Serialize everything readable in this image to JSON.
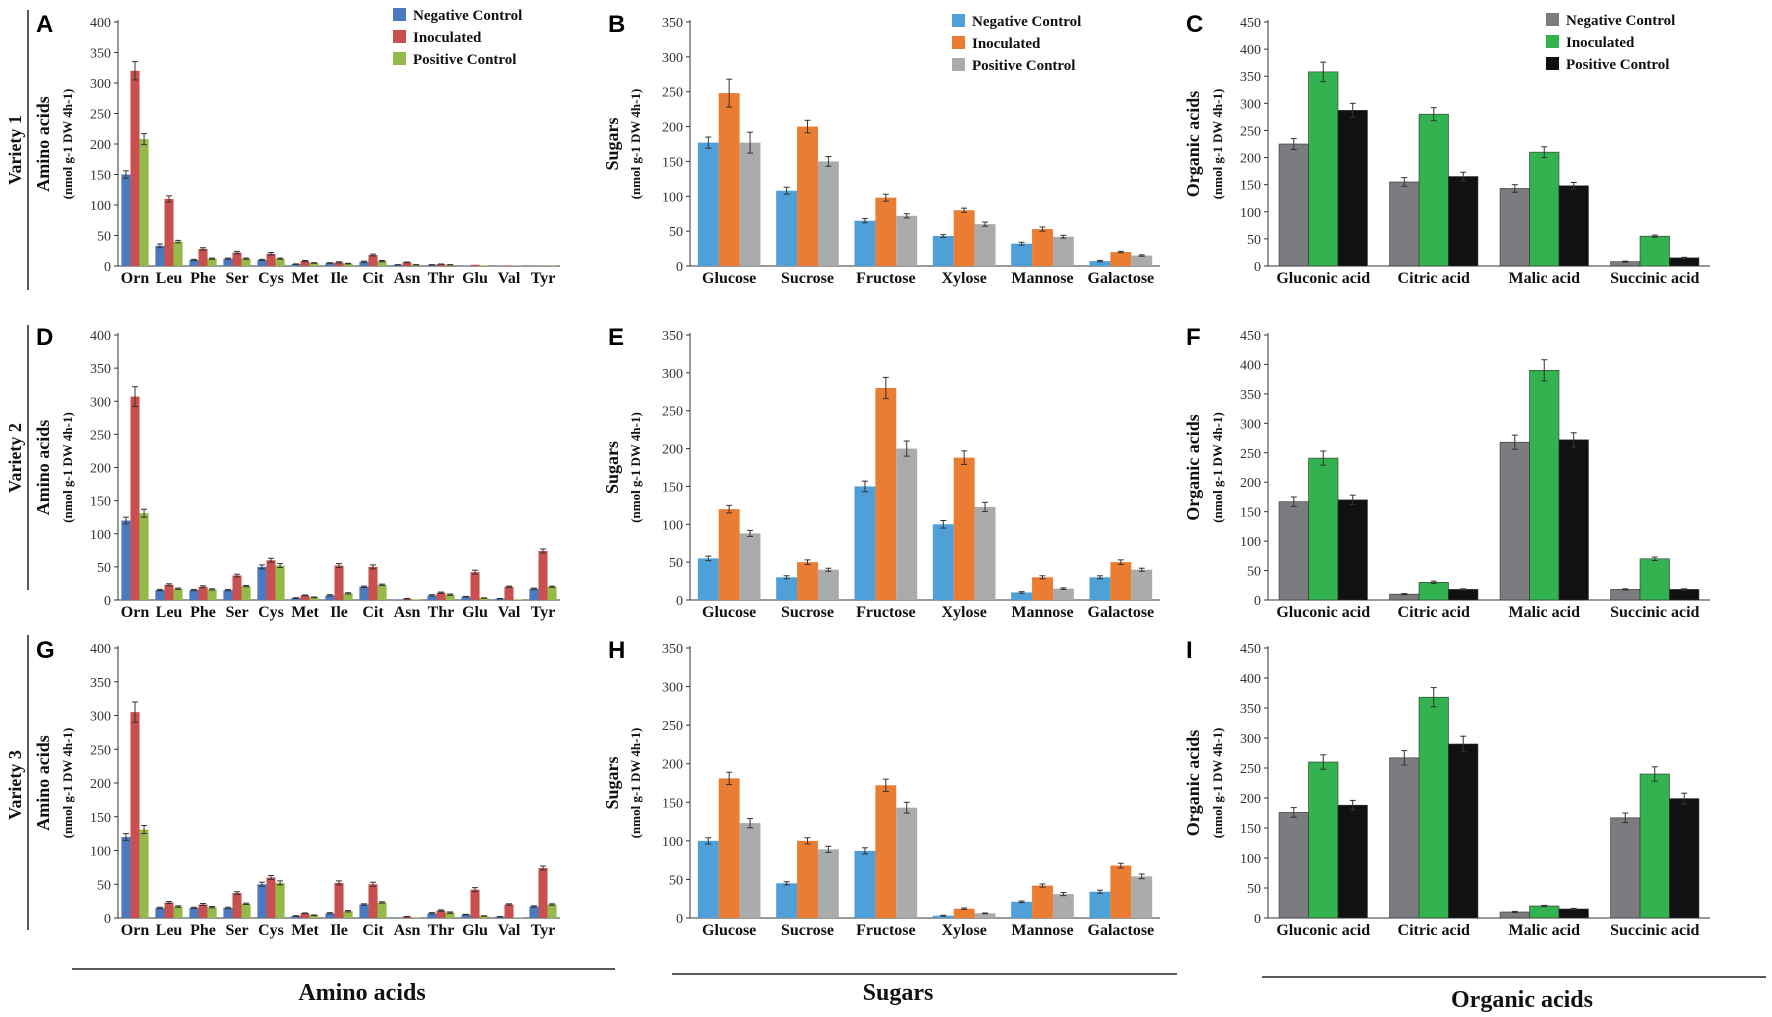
{
  "figure": {
    "row_labels": [
      "Variety 1",
      "Variety 2",
      "Variety 3"
    ],
    "group_labels": [
      "Amino acids",
      "Sugars",
      "Organic acids"
    ],
    "colors": {
      "amino": [
        "#4a79bf",
        "#c9504f",
        "#94bb49"
      ],
      "sugar": [
        "#4f9fd9",
        "#ea7d31",
        "#a9abad"
      ],
      "organic": [
        "#7a7c7f",
        "#32b350",
        "#111111"
      ]
    },
    "y_units": "(nmol g-1 DW 4h-1)"
  },
  "chart_data": [
    {
      "label": "A",
      "type": "bar",
      "ylabel": "Amino acids",
      "ylim": [
        0,
        400
      ],
      "ytick_step": 50,
      "legend": true,
      "legend_position": "top-right",
      "categories": [
        "Orn",
        "Leu",
        "Phe",
        "Ser",
        "Cys",
        "Met",
        "Ile",
        "Cit",
        "Asn",
        "Thr",
        "Glu",
        "Val",
        "Tyr"
      ],
      "series": [
        {
          "name": "Negative Control",
          "values": [
            150,
            33,
            10,
            12,
            10,
            3,
            5,
            7,
            2,
            2,
            1,
            0.5,
            0.5
          ],
          "errors": [
            6,
            3,
            1,
            1,
            1,
            0.5,
            0.5,
            1,
            0.3,
            0.3,
            0.2,
            0.1,
            0.1
          ]
        },
        {
          "name": "Inoculated",
          "values": [
            320,
            110,
            28,
            22,
            20,
            8,
            6,
            18,
            6,
            3,
            2,
            1,
            0.5
          ],
          "errors": [
            15,
            5,
            2,
            2,
            2,
            1,
            1,
            1.5,
            0.5,
            0.3,
            0.2,
            0.1,
            0.1
          ]
        },
        {
          "name": "Positive Control",
          "values": [
            208,
            40,
            12,
            12,
            12,
            5,
            4,
            8,
            2,
            2,
            1,
            0.5,
            0.5
          ],
          "errors": [
            9,
            2,
            1,
            1,
            1,
            0.5,
            0.5,
            1,
            0.3,
            0.3,
            0.2,
            0.1,
            0.1
          ]
        }
      ]
    },
    {
      "label": "B",
      "type": "bar",
      "ylabel": "Sugars",
      "ylim": [
        0,
        350
      ],
      "ytick_step": 50,
      "legend": true,
      "legend_position": "top-right",
      "categories": [
        "Glucose",
        "Sucrose",
        "Fructose",
        "Xylose",
        "Mannose",
        "Galactose"
      ],
      "series": [
        {
          "name": "Negative Control",
          "values": [
            177,
            108,
            65,
            43,
            32,
            7
          ],
          "errors": [
            8,
            5,
            3,
            2,
            2,
            1
          ]
        },
        {
          "name": "Inoculated",
          "values": [
            248,
            200,
            98,
            80,
            53,
            20
          ],
          "errors": [
            20,
            9,
            5,
            3,
            3,
            1
          ]
        },
        {
          "name": "Positive Control",
          "values": [
            177,
            150,
            72,
            60,
            42,
            15
          ],
          "errors": [
            15,
            7,
            3,
            3,
            2,
            1
          ]
        }
      ]
    },
    {
      "label": "C",
      "type": "bar",
      "ylabel": "Organic acids",
      "ylim": [
        0,
        450
      ],
      "ytick_step": 50,
      "legend": true,
      "legend_position": "top-right",
      "categories": [
        "Gluconic acid",
        "Citric acid",
        "Malic acid",
        "Succinic acid"
      ],
      "series": [
        {
          "name": "Negative Control",
          "values": [
            225,
            155,
            143,
            8
          ],
          "errors": [
            10,
            8,
            7,
            1
          ]
        },
        {
          "name": "Inoculated",
          "values": [
            358,
            280,
            210,
            55
          ],
          "errors": [
            18,
            12,
            10,
            2
          ]
        },
        {
          "name": "Positive Control",
          "values": [
            287,
            165,
            148,
            15
          ],
          "errors": [
            13,
            8,
            6,
            1
          ]
        }
      ]
    },
    {
      "label": "D",
      "type": "bar",
      "ylabel": "Amino acids",
      "ylim": [
        0,
        400
      ],
      "ytick_step": 50,
      "legend": false,
      "categories": [
        "Orn",
        "Leu",
        "Phe",
        "Ser",
        "Cys",
        "Met",
        "Ile",
        "Cit",
        "Asn",
        "Thr",
        "Glu",
        "Val",
        "Tyr"
      ],
      "series": [
        {
          "name": "Negative Control",
          "values": [
            120,
            15,
            15,
            15,
            50,
            3,
            7,
            20,
            1,
            7,
            5,
            2,
            17
          ],
          "errors": [
            5,
            1,
            1,
            1,
            3,
            0.5,
            1,
            1,
            0.2,
            1,
            0.5,
            0.3,
            1
          ]
        },
        {
          "name": "Inoculated",
          "values": [
            307,
            23,
            20,
            37,
            60,
            7,
            52,
            50,
            2,
            11,
            42,
            20,
            74
          ],
          "errors": [
            15,
            1.5,
            1.5,
            2,
            3,
            0.5,
            3,
            3,
            0.3,
            1,
            3,
            1,
            3
          ]
        },
        {
          "name": "Positive Control",
          "values": [
            131,
            17,
            16,
            21,
            52,
            4,
            10,
            23,
            1,
            8,
            3,
            1,
            20
          ],
          "errors": [
            6,
            1,
            1,
            1,
            3,
            0.5,
            1,
            1,
            0.2,
            1,
            0.3,
            0.2,
            1
          ]
        }
      ]
    },
    {
      "label": "E",
      "type": "bar",
      "ylabel": "Sugars",
      "ylim": [
        0,
        350
      ],
      "ytick_step": 50,
      "legend": false,
      "categories": [
        "Glucose",
        "Sucrose",
        "Fructose",
        "Xylose",
        "Mannose",
        "Galactose"
      ],
      "series": [
        {
          "name": "Negative Control",
          "values": [
            55,
            30,
            150,
            100,
            10,
            30
          ],
          "errors": [
            3,
            2,
            7,
            5,
            1,
            2
          ]
        },
        {
          "name": "Inoculated",
          "values": [
            120,
            50,
            280,
            188,
            30,
            50
          ],
          "errors": [
            5,
            3,
            14,
            9,
            2,
            3
          ]
        },
        {
          "name": "Positive Control",
          "values": [
            88,
            40,
            200,
            123,
            15,
            40
          ],
          "errors": [
            4,
            2,
            10,
            6,
            1,
            2
          ]
        }
      ]
    },
    {
      "label": "F",
      "type": "bar",
      "ylabel": "Organic acids",
      "ylim": [
        0,
        450
      ],
      "ytick_step": 50,
      "legend": false,
      "categories": [
        "Gluconic acid",
        "Citric acid",
        "Malic acid",
        "Succinic acid"
      ],
      "series": [
        {
          "name": "Negative Control",
          "values": [
            167,
            10,
            268,
            18
          ],
          "errors": [
            8,
            1,
            12,
            1
          ]
        },
        {
          "name": "Inoculated",
          "values": [
            241,
            30,
            390,
            70
          ],
          "errors": [
            12,
            2,
            18,
            3
          ]
        },
        {
          "name": "Positive Control",
          "values": [
            170,
            18,
            272,
            18
          ],
          "errors": [
            8,
            1,
            12,
            1
          ]
        }
      ]
    },
    {
      "label": "G",
      "type": "bar",
      "ylabel": "Amino acids",
      "ylim": [
        0,
        400
      ],
      "ytick_step": 50,
      "legend": false,
      "categories": [
        "Orn",
        "Leu",
        "Phe",
        "Ser",
        "Cys",
        "Met",
        "Ile",
        "Cit",
        "Asn",
        "Thr",
        "Glu",
        "Val",
        "Tyr"
      ],
      "series": [
        {
          "name": "Negative Control",
          "values": [
            120,
            15,
            15,
            15,
            50,
            3,
            7,
            20,
            1,
            7,
            5,
            2,
            17
          ],
          "errors": [
            5,
            1,
            1,
            1,
            3,
            0.5,
            1,
            1,
            0.2,
            1,
            0.5,
            0.3,
            1
          ]
        },
        {
          "name": "Inoculated",
          "values": [
            305,
            23,
            20,
            37,
            60,
            7,
            52,
            50,
            2,
            11,
            42,
            20,
            74
          ],
          "errors": [
            15,
            1.5,
            1.5,
            2,
            3,
            0.5,
            3,
            3,
            0.3,
            1,
            3,
            1,
            3
          ]
        },
        {
          "name": "Positive Control",
          "values": [
            131,
            17,
            16,
            21,
            52,
            4,
            10,
            23,
            1,
            8,
            3,
            1,
            20
          ],
          "errors": [
            6,
            1,
            1,
            1,
            3,
            0.5,
            1,
            1,
            0.2,
            1,
            0.3,
            0.2,
            1
          ]
        }
      ]
    },
    {
      "label": "H",
      "type": "bar",
      "ylabel": "Sugars",
      "ylim": [
        0,
        350
      ],
      "ytick_step": 50,
      "legend": false,
      "categories": [
        "Glucose",
        "Sucrose",
        "Fructose",
        "Xylose",
        "Mannose",
        "Galactose"
      ],
      "series": [
        {
          "name": "Negative Control",
          "values": [
            100,
            45,
            87,
            3,
            21,
            34
          ],
          "errors": [
            4,
            2,
            4,
            0.5,
            1,
            2
          ]
        },
        {
          "name": "Inoculated",
          "values": [
            181,
            100,
            172,
            12,
            42,
            68
          ],
          "errors": [
            8,
            4,
            8,
            1,
            2,
            3
          ]
        },
        {
          "name": "Positive Control",
          "values": [
            123,
            89,
            143,
            6,
            31,
            54
          ],
          "errors": [
            6,
            4,
            7,
            0.5,
            2,
            3
          ]
        }
      ]
    },
    {
      "label": "I",
      "type": "bar",
      "ylabel": "Organic acids",
      "ylim": [
        0,
        450
      ],
      "ytick_step": 50,
      "legend": false,
      "categories": [
        "Gluconic acid",
        "Citric acid",
        "Malic acid",
        "Succinic acid"
      ],
      "series": [
        {
          "name": "Negative Control",
          "values": [
            176,
            267,
            10,
            167
          ],
          "errors": [
            8,
            12,
            1,
            8
          ]
        },
        {
          "name": "Inoculated",
          "values": [
            260,
            368,
            20,
            240
          ],
          "errors": [
            12,
            16,
            1,
            12
          ]
        },
        {
          "name": "Positive Control",
          "values": [
            188,
            290,
            15,
            199
          ],
          "errors": [
            8,
            13,
            1,
            9
          ]
        }
      ]
    }
  ]
}
